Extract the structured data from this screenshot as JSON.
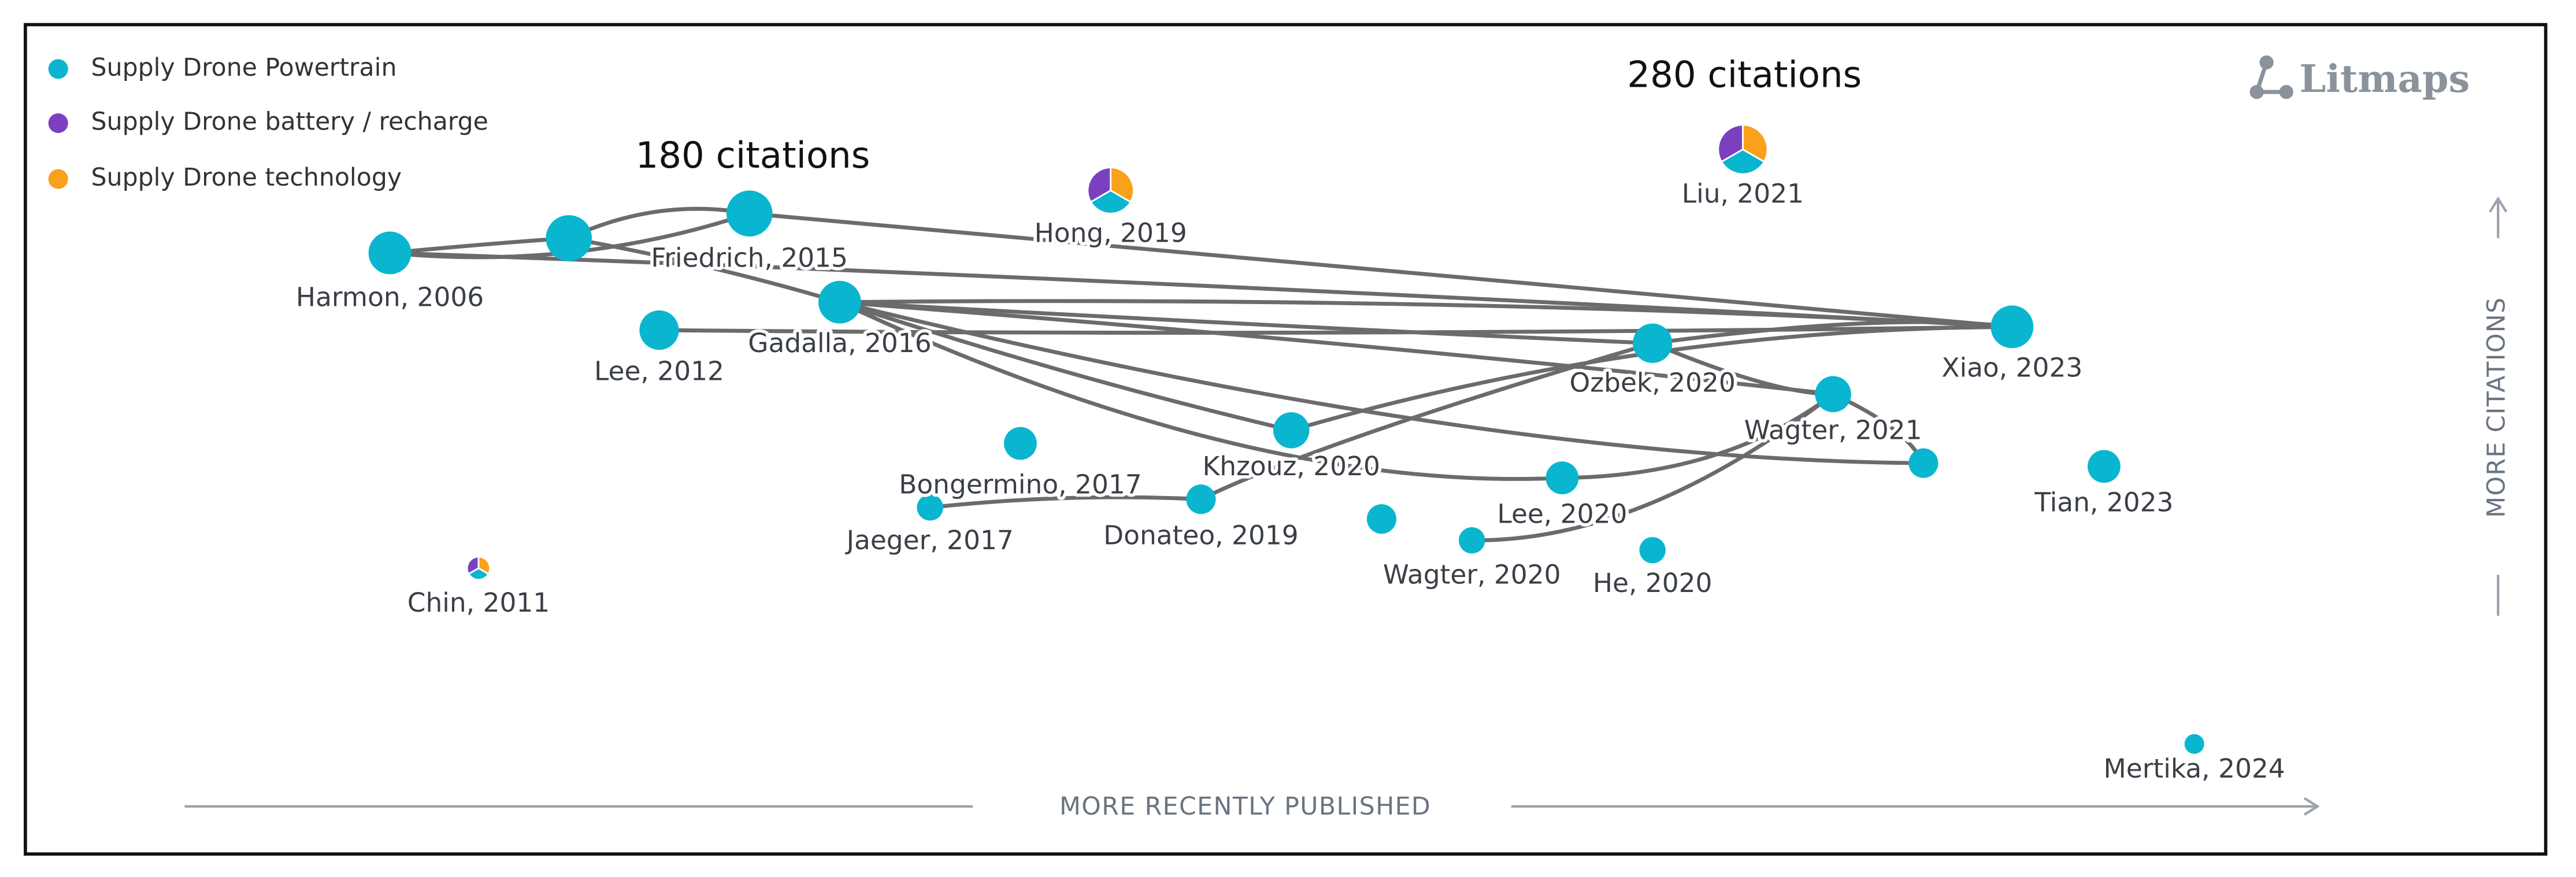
{
  "legend": [
    {
      "label": "Supply Drone Powertrain"
    },
    {
      "label": "Supply Drone battery / recharge"
    },
    {
      "label": "Supply Drone technology"
    }
  ],
  "annotations": [
    "180 citations",
    "280 citations"
  ],
  "logo": "Litmaps",
  "axes": {
    "x": "MORE RECENTLY PUBLISHED",
    "y": "MORE CITATIONS"
  },
  "nodes": [
    {
      "label": "Harmon, 2006"
    },
    {
      "label": "Friedrich, 2015"
    },
    {
      "label": "Lee, 2012"
    },
    {
      "label": "Gadalla, 2016"
    },
    {
      "label": "Hong, 2019"
    },
    {
      "label": "Liu, 2021"
    },
    {
      "label": "Xiao, 2023"
    },
    {
      "label": "Ozbek, 2020"
    },
    {
      "label": "Wagter, 2021"
    },
    {
      "label": "Tian, 2023"
    },
    {
      "label": "Khzouz, 2020"
    },
    {
      "label": "Bongermino, 2017"
    },
    {
      "label": "Jaeger, 2017"
    },
    {
      "label": "Donateo, 2019"
    },
    {
      "label": "Lee, 2020"
    },
    {
      "label": "Wagter, 2020"
    },
    {
      "label": "He, 2020"
    },
    {
      "label": "Chin, 2011"
    },
    {
      "label": "Mertika, 2024"
    }
  ]
}
